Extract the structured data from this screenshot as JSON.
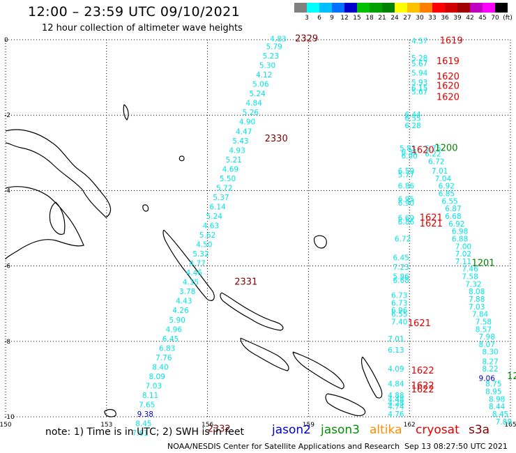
{
  "title": "12:00 – 23:59 UTC 09/10/2021",
  "subtitle": "12 hour collection of altimeter wave heights",
  "colorbar": {
    "labels": [
      "",
      "3",
      "6",
      "9",
      "12",
      "15",
      "18",
      "21",
      "24",
      "27",
      "30",
      "33",
      "36",
      "39",
      "42",
      "45",
      "70",
      "(ft)"
    ],
    "colors": [
      "#808080",
      "#00ffff",
      "#00bfff",
      "#0070ff",
      "#0000cd",
      "#00c000",
      "#00a000",
      "#008000",
      "#ffff00",
      "#ffc000",
      "#ff8000",
      "#ff0000",
      "#d00000",
      "#a00000",
      "#c000c0",
      "#ff00ff",
      "#000000"
    ]
  },
  "axes": {
    "x_ticks": [
      {
        "lon": 150,
        "label": "150"
      },
      {
        "lon": 153,
        "label": "153"
      },
      {
        "lon": 156,
        "label": "156"
      },
      {
        "lon": 159,
        "label": "159"
      },
      {
        "lon": 162,
        "label": "162"
      },
      {
        "lon": 165,
        "label": "165"
      }
    ],
    "y_ticks": [
      {
        "lat": 0,
        "label": "0"
      },
      {
        "lat": -2,
        "label": "-2"
      },
      {
        "lat": -4,
        "label": "-4"
      },
      {
        "lat": -6,
        "label": "-6"
      },
      {
        "lat": -8,
        "label": "-8"
      },
      {
        "lat": -10,
        "label": "-10"
      }
    ],
    "lon_range": [
      150,
      165
    ],
    "lat_range": [
      -10,
      0
    ]
  },
  "tracks": [
    {
      "color": "#00e5e5",
      "points": [
        [
          158.1,
          -0.05,
          "4.83"
        ],
        [
          157.98,
          -0.25,
          "5.79"
        ],
        [
          157.88,
          -0.5,
          "5.23"
        ],
        [
          157.78,
          -0.75,
          "5.30"
        ],
        [
          157.68,
          -1.0,
          "4.12"
        ],
        [
          157.58,
          -1.25,
          "5.06"
        ],
        [
          157.48,
          -1.5,
          "5.24"
        ],
        [
          157.38,
          -1.75,
          "4.84"
        ],
        [
          157.28,
          -2.0,
          "5.26"
        ],
        [
          157.18,
          -2.25,
          "4.90"
        ],
        [
          157.08,
          -2.5,
          "4.47"
        ],
        [
          156.98,
          -2.75,
          "5.43"
        ],
        [
          156.88,
          -3.0,
          "4.93"
        ],
        [
          156.78,
          -3.25,
          "5.21"
        ],
        [
          156.68,
          -3.5,
          "4.69"
        ],
        [
          156.6,
          -3.75,
          "5.50"
        ],
        [
          156.5,
          -4.0,
          "5.72"
        ],
        [
          156.4,
          -4.25,
          "5.37"
        ],
        [
          156.3,
          -4.5,
          "6.14"
        ],
        [
          156.2,
          -4.75,
          "5.24"
        ],
        [
          156.1,
          -5.0,
          "4.63"
        ],
        [
          156.0,
          -5.25,
          "5.62"
        ],
        [
          155.9,
          -5.5,
          "4.50"
        ],
        [
          155.8,
          -5.75,
          "5.32"
        ],
        [
          155.7,
          -6.0,
          "4.77"
        ],
        [
          155.6,
          -6.25,
          "4.46"
        ],
        [
          155.5,
          -6.5,
          "4.35"
        ],
        [
          155.4,
          -6.75,
          "3.78"
        ],
        [
          155.3,
          -7.0,
          "4.43"
        ],
        [
          155.2,
          -7.25,
          "4.26"
        ],
        [
          155.1,
          -7.5,
          "5.90"
        ],
        [
          155.0,
          -7.75,
          "4.96"
        ],
        [
          154.9,
          -8.0,
          "6.45"
        ],
        [
          154.8,
          -8.25,
          "6.83"
        ],
        [
          154.7,
          -8.5,
          "7.76"
        ],
        [
          154.6,
          -8.75,
          "8.40"
        ],
        [
          154.5,
          -9.0,
          "8.09"
        ],
        [
          154.4,
          -9.25,
          "7.03"
        ],
        [
          154.3,
          -9.5,
          "8.11"
        ],
        [
          154.2,
          -9.75,
          "7.65"
        ],
        [
          154.1,
          -10.25,
          "8.45"
        ],
        [
          154.0,
          -10.5,
          "7.61"
        ]
      ]
    },
    {
      "color": "#0000cd",
      "points": [
        [
          154.15,
          -10.0,
          "9.38"
        ]
      ]
    },
    {
      "color": "#00e5e5",
      "points": [
        [
          162.3,
          -0.1,
          "4.57"
        ],
        [
          162.3,
          -0.55,
          "5.28"
        ],
        [
          162.3,
          -0.7,
          "5.67"
        ],
        [
          162.3,
          -0.95,
          "5.94"
        ],
        [
          162.3,
          -1.2,
          "5.93"
        ],
        [
          162.3,
          -1.35,
          "6.15"
        ],
        [
          162.3,
          -1.45,
          "5.67"
        ],
        [
          162.1,
          -2.05,
          "6.44"
        ],
        [
          162.1,
          -2.15,
          "6.55"
        ],
        [
          162.1,
          -2.35,
          "6.28"
        ],
        [
          161.95,
          -2.95,
          "5.81"
        ],
        [
          162.0,
          -3.05,
          "6.31"
        ],
        [
          162.0,
          -3.15,
          "6.90"
        ],
        [
          161.9,
          -3.55,
          "6.59"
        ],
        [
          161.9,
          -3.65,
          "5.77"
        ],
        [
          161.9,
          -3.95,
          "6.86"
        ],
        [
          161.9,
          -4.3,
          "6.95"
        ],
        [
          161.9,
          -4.4,
          "6.90"
        ],
        [
          161.9,
          -4.8,
          "6.69"
        ],
        [
          161.9,
          -4.9,
          "6.86"
        ],
        [
          161.8,
          -5.35,
          "6.72"
        ],
        [
          161.75,
          -5.85,
          "6.45"
        ],
        [
          161.75,
          -6.1,
          "7.23"
        ],
        [
          161.75,
          -6.35,
          "5.86"
        ],
        [
          161.75,
          -6.45,
          "6.68"
        ],
        [
          161.7,
          -6.85,
          "6.73"
        ],
        [
          161.7,
          -7.05,
          "6.73"
        ],
        [
          161.7,
          -7.25,
          "6.96"
        ],
        [
          161.7,
          -7.35,
          "6.55"
        ],
        [
          161.7,
          -7.55,
          "7.40"
        ],
        [
          161.6,
          -8.0,
          "7.01"
        ],
        [
          161.6,
          -8.3,
          "6.13"
        ],
        [
          161.6,
          -8.8,
          "4.09"
        ],
        [
          161.6,
          -9.2,
          "4.84"
        ],
        [
          161.6,
          -9.5,
          "4.88"
        ],
        [
          161.6,
          -9.6,
          "4.48"
        ],
        [
          161.6,
          -9.7,
          "4.28"
        ],
        [
          161.6,
          -9.8,
          "4.74"
        ],
        [
          161.6,
          -10.0,
          "4.76"
        ]
      ]
    },
    {
      "color": "#00e5e5",
      "points": [
        [
          162.7,
          -2.95,
          "5.75"
        ],
        [
          162.7,
          -3.1,
          "6.22"
        ],
        [
          162.8,
          -3.3,
          "6.72"
        ],
        [
          162.9,
          -3.55,
          "7.01"
        ],
        [
          163.0,
          -3.75,
          "7.04"
        ],
        [
          163.1,
          -3.95,
          "6.92"
        ],
        [
          163.1,
          -4.15,
          "6.85"
        ],
        [
          163.2,
          -4.35,
          "6.55"
        ],
        [
          163.3,
          -4.55,
          "6.87"
        ],
        [
          163.3,
          -4.75,
          "6.68"
        ],
        [
          163.4,
          -4.95,
          "6.92"
        ],
        [
          163.5,
          -5.15,
          "6.98"
        ],
        [
          163.5,
          -5.35,
          "6.88"
        ],
        [
          163.6,
          -5.55,
          "7.00"
        ],
        [
          163.6,
          -5.75,
          "7.02"
        ],
        [
          163.6,
          -5.95,
          "7.11"
        ],
        [
          163.8,
          -6.15,
          "7.46"
        ],
        [
          163.8,
          -6.35,
          "7.58"
        ],
        [
          163.9,
          -6.55,
          "7.32"
        ],
        [
          164.0,
          -6.75,
          "8.08"
        ],
        [
          164.0,
          -6.95,
          "7.88"
        ],
        [
          164.0,
          -7.15,
          "7.03"
        ],
        [
          164.1,
          -7.35,
          "7.84"
        ],
        [
          164.2,
          -7.55,
          "7.58"
        ],
        [
          164.2,
          -7.75,
          "8.57"
        ],
        [
          164.3,
          -7.95,
          "7.98"
        ],
        [
          164.3,
          -8.15,
          "8.07"
        ],
        [
          164.4,
          -8.35,
          "8.30"
        ],
        [
          164.4,
          -8.6,
          "8.27"
        ],
        [
          164.4,
          -8.8,
          "8.22"
        ],
        [
          164.5,
          -9.2,
          "8.75"
        ],
        [
          164.5,
          -9.4,
          "8.95"
        ],
        [
          164.6,
          -9.6,
          "8.98"
        ],
        [
          164.6,
          -9.8,
          "8.44"
        ],
        [
          164.7,
          -10.0,
          "8.45"
        ],
        [
          164.8,
          -10.2,
          "7.88"
        ]
      ]
    },
    {
      "color": "#0000cd",
      "points": [
        [
          164.3,
          -9.05,
          "9.06"
        ]
      ]
    }
  ],
  "time_labels": [
    {
      "text": "2329",
      "lon": 158.6,
      "lat": -0.05,
      "color": "#800000"
    },
    {
      "text": "2330",
      "lon": 157.7,
      "lat": -2.7,
      "color": "#800000"
    },
    {
      "text": "2331",
      "lon": 156.8,
      "lat": -6.5,
      "color": "#800000"
    },
    {
      "text": "2332",
      "lon": 156.0,
      "lat": -10.4,
      "color": "#800000"
    },
    {
      "text": "1619",
      "lon": 162.9,
      "lat": -0.1,
      "color": "#e00000"
    },
    {
      "text": "1619",
      "lon": 162.8,
      "lat": -0.65,
      "color": "#e00000"
    },
    {
      "text": "1620",
      "lon": 162.8,
      "lat": -1.05,
      "color": "#e00000"
    },
    {
      "text": "1620",
      "lon": 162.8,
      "lat": -1.3,
      "color": "#e00000"
    },
    {
      "text": "1620",
      "lon": 162.8,
      "lat": -1.6,
      "color": "#e00000"
    },
    {
      "text": "1620",
      "lon": 162.05,
      "lat": -3.0,
      "color": "#e00000"
    },
    {
      "text": "1200",
      "lon": 162.75,
      "lat": -2.95,
      "color": "#008000"
    },
    {
      "text": "1621",
      "lon": 162.3,
      "lat": -4.8,
      "color": "#e00000"
    },
    {
      "text": "1621",
      "lon": 162.3,
      "lat": -4.95,
      "color": "#e00000"
    },
    {
      "text": "1201",
      "lon": 163.85,
      "lat": -6.0,
      "color": "#008000"
    },
    {
      "text": "1621",
      "lon": 161.95,
      "lat": -7.6,
      "color": "#e00000"
    },
    {
      "text": "1622",
      "lon": 162.05,
      "lat": -8.85,
      "color": "#e00000"
    },
    {
      "text": "1622",
      "lon": 162.05,
      "lat": -9.25,
      "color": "#e00000"
    },
    {
      "text": "1622",
      "lon": 162.05,
      "lat": -9.35,
      "color": "#e00000"
    },
    {
      "text": "12",
      "lon": 164.9,
      "lat": -9.0,
      "color": "#008000"
    }
  ],
  "footer": {
    "note": "note:  1) Time is in UTC;  2) SWH is in feet",
    "legend": [
      {
        "name": "jason2",
        "color": "#0000cd"
      },
      {
        "name": "jason3",
        "color": "#009000"
      },
      {
        "name": "altika",
        "color": "#ff8c00"
      },
      {
        "name": "cryosat",
        "color": "#e00000"
      },
      {
        "name": "s3a",
        "color": "#800000"
      }
    ],
    "credit": "NOAA/NESDIS Center for Satellite Applications and Research",
    "timestamp": "Sep 13 08:27:50 UTC 2021"
  }
}
